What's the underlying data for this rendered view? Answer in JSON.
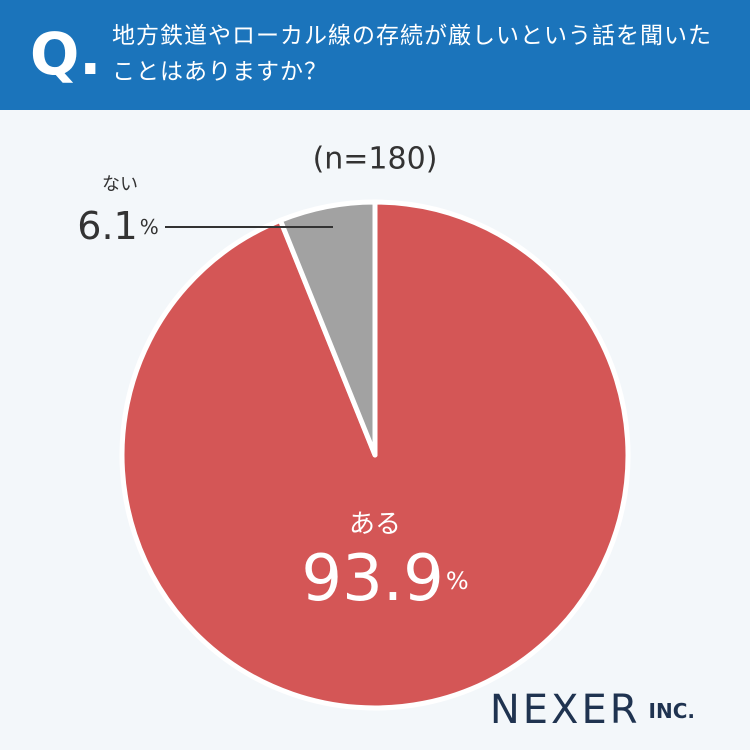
{
  "header": {
    "q": "Q.",
    "title": "地方鉄道やローカル線の存続が厳しいという話を聞いたことはありますか？"
  },
  "chart_data": {
    "type": "pie",
    "subtitle": "(n=180)",
    "categories": [
      "ある",
      "ない"
    ],
    "values": [
      93.9,
      6.1
    ],
    "unit": "%",
    "colors": [
      "#d45656",
      "#a2a2a2"
    ]
  },
  "logo": {
    "name": "NEXER",
    "suffix": "INC."
  }
}
